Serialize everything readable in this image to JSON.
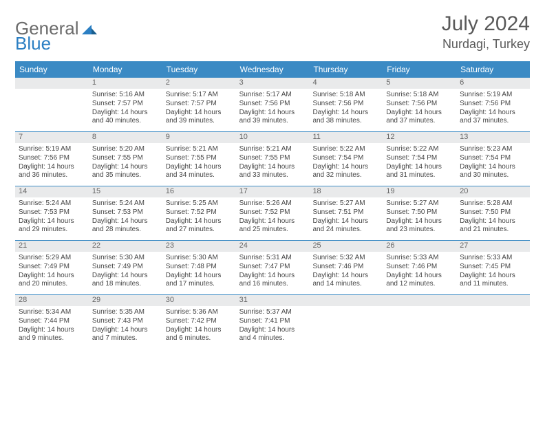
{
  "logo": {
    "text1": "General",
    "text2": "Blue"
  },
  "title": {
    "month": "July 2024",
    "location": "Nurdagi, Turkey"
  },
  "colors": {
    "header_bg": "#3b8ac4",
    "header_text": "#ffffff",
    "daynum_bg": "#e9eaeb",
    "body_text": "#444444",
    "rule": "#3b8ac4",
    "logo_grey": "#6b6b6b",
    "logo_blue": "#2b7fc3"
  },
  "dayNames": [
    "Sunday",
    "Monday",
    "Tuesday",
    "Wednesday",
    "Thursday",
    "Friday",
    "Saturday"
  ],
  "weeks": [
    [
      null,
      {
        "n": "1",
        "sr": "5:16 AM",
        "ss": "7:57 PM",
        "dl": "14 hours and 40 minutes."
      },
      {
        "n": "2",
        "sr": "5:17 AM",
        "ss": "7:57 PM",
        "dl": "14 hours and 39 minutes."
      },
      {
        "n": "3",
        "sr": "5:17 AM",
        "ss": "7:56 PM",
        "dl": "14 hours and 39 minutes."
      },
      {
        "n": "4",
        "sr": "5:18 AM",
        "ss": "7:56 PM",
        "dl": "14 hours and 38 minutes."
      },
      {
        "n": "5",
        "sr": "5:18 AM",
        "ss": "7:56 PM",
        "dl": "14 hours and 37 minutes."
      },
      {
        "n": "6",
        "sr": "5:19 AM",
        "ss": "7:56 PM",
        "dl": "14 hours and 37 minutes."
      }
    ],
    [
      {
        "n": "7",
        "sr": "5:19 AM",
        "ss": "7:56 PM",
        "dl": "14 hours and 36 minutes."
      },
      {
        "n": "8",
        "sr": "5:20 AM",
        "ss": "7:55 PM",
        "dl": "14 hours and 35 minutes."
      },
      {
        "n": "9",
        "sr": "5:21 AM",
        "ss": "7:55 PM",
        "dl": "14 hours and 34 minutes."
      },
      {
        "n": "10",
        "sr": "5:21 AM",
        "ss": "7:55 PM",
        "dl": "14 hours and 33 minutes."
      },
      {
        "n": "11",
        "sr": "5:22 AM",
        "ss": "7:54 PM",
        "dl": "14 hours and 32 minutes."
      },
      {
        "n": "12",
        "sr": "5:22 AM",
        "ss": "7:54 PM",
        "dl": "14 hours and 31 minutes."
      },
      {
        "n": "13",
        "sr": "5:23 AM",
        "ss": "7:54 PM",
        "dl": "14 hours and 30 minutes."
      }
    ],
    [
      {
        "n": "14",
        "sr": "5:24 AM",
        "ss": "7:53 PM",
        "dl": "14 hours and 29 minutes."
      },
      {
        "n": "15",
        "sr": "5:24 AM",
        "ss": "7:53 PM",
        "dl": "14 hours and 28 minutes."
      },
      {
        "n": "16",
        "sr": "5:25 AM",
        "ss": "7:52 PM",
        "dl": "14 hours and 27 minutes."
      },
      {
        "n": "17",
        "sr": "5:26 AM",
        "ss": "7:52 PM",
        "dl": "14 hours and 25 minutes."
      },
      {
        "n": "18",
        "sr": "5:27 AM",
        "ss": "7:51 PM",
        "dl": "14 hours and 24 minutes."
      },
      {
        "n": "19",
        "sr": "5:27 AM",
        "ss": "7:50 PM",
        "dl": "14 hours and 23 minutes."
      },
      {
        "n": "20",
        "sr": "5:28 AM",
        "ss": "7:50 PM",
        "dl": "14 hours and 21 minutes."
      }
    ],
    [
      {
        "n": "21",
        "sr": "5:29 AM",
        "ss": "7:49 PM",
        "dl": "14 hours and 20 minutes."
      },
      {
        "n": "22",
        "sr": "5:30 AM",
        "ss": "7:49 PM",
        "dl": "14 hours and 18 minutes."
      },
      {
        "n": "23",
        "sr": "5:30 AM",
        "ss": "7:48 PM",
        "dl": "14 hours and 17 minutes."
      },
      {
        "n": "24",
        "sr": "5:31 AM",
        "ss": "7:47 PM",
        "dl": "14 hours and 16 minutes."
      },
      {
        "n": "25",
        "sr": "5:32 AM",
        "ss": "7:46 PM",
        "dl": "14 hours and 14 minutes."
      },
      {
        "n": "26",
        "sr": "5:33 AM",
        "ss": "7:46 PM",
        "dl": "14 hours and 12 minutes."
      },
      {
        "n": "27",
        "sr": "5:33 AM",
        "ss": "7:45 PM",
        "dl": "14 hours and 11 minutes."
      }
    ],
    [
      {
        "n": "28",
        "sr": "5:34 AM",
        "ss": "7:44 PM",
        "dl": "14 hours and 9 minutes."
      },
      {
        "n": "29",
        "sr": "5:35 AM",
        "ss": "7:43 PM",
        "dl": "14 hours and 7 minutes."
      },
      {
        "n": "30",
        "sr": "5:36 AM",
        "ss": "7:42 PM",
        "dl": "14 hours and 6 minutes."
      },
      {
        "n": "31",
        "sr": "5:37 AM",
        "ss": "7:41 PM",
        "dl": "14 hours and 4 minutes."
      },
      null,
      null,
      null
    ]
  ],
  "labels": {
    "sunrise": "Sunrise: ",
    "sunset": "Sunset: ",
    "daylight": "Daylight: "
  }
}
